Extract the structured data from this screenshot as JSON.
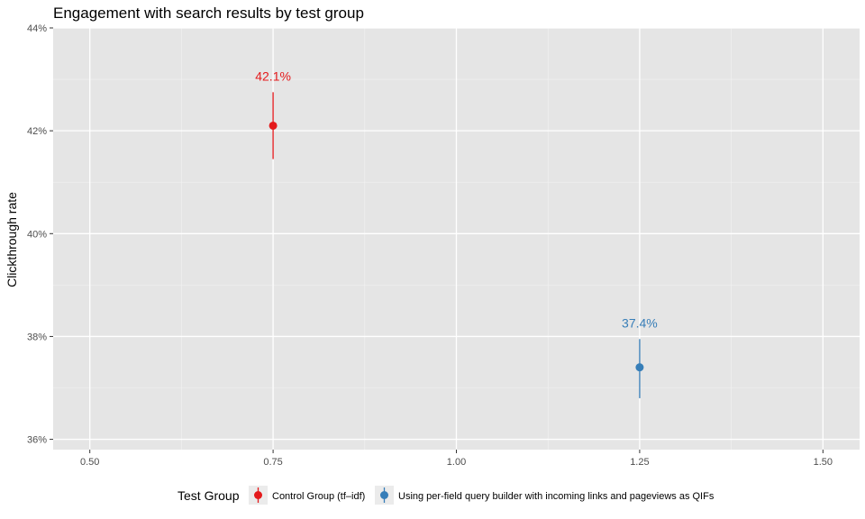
{
  "chart_data": {
    "type": "scatter",
    "title": "Engagement with search results by test group",
    "xlabel": "",
    "ylabel": "Clickthrough rate",
    "xlim": [
      0.45,
      1.55
    ],
    "ylim": [
      35.8,
      44.0
    ],
    "x_ticks": [
      0.5,
      0.75,
      1.0,
      1.25,
      1.5
    ],
    "x_tick_labels": [
      "0.50",
      "0.75",
      "1.00",
      "1.25",
      "1.50"
    ],
    "y_ticks": [
      36,
      38,
      40,
      42,
      44
    ],
    "y_tick_labels": [
      "36%",
      "38%",
      "40%",
      "42%",
      "44%"
    ],
    "grid": true,
    "legend_title": "Test Group",
    "legend_position": "bottom",
    "series": [
      {
        "name": "Control Group (tf–idf)",
        "color": "#e41a1c",
        "x": 0.75,
        "y": 42.1,
        "ymin": 41.45,
        "ymax": 42.75,
        "label": "42.1%"
      },
      {
        "name": "Using per-field query builder with incoming links and pageviews as QIFs",
        "color": "#377eb8",
        "x": 1.25,
        "y": 37.4,
        "ymin": 36.8,
        "ymax": 37.95,
        "label": "37.4%"
      }
    ]
  }
}
